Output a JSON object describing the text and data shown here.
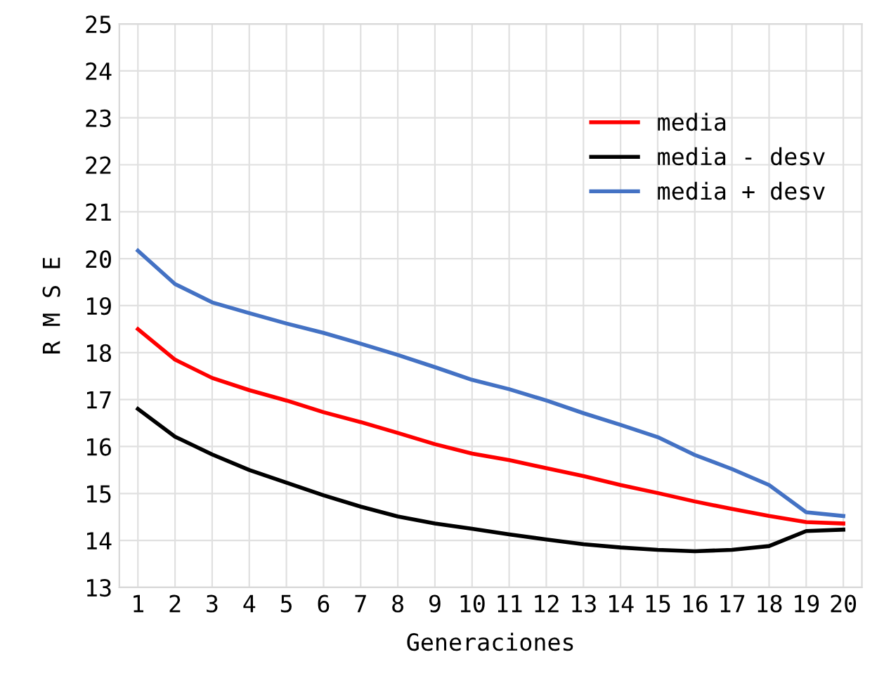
{
  "chart_data": {
    "type": "line",
    "xlabel": "Generaciones",
    "ylabel": "R M S E",
    "categories": [
      "1",
      "2",
      "3",
      "4",
      "5",
      "6",
      "7",
      "8",
      "9",
      "10",
      "11",
      "12",
      "13",
      "14",
      "15",
      "16",
      "17",
      "18",
      "19",
      "20"
    ],
    "series": [
      {
        "name": "media",
        "color": "#ff0000",
        "values": [
          18.5,
          17.85,
          17.46,
          17.2,
          16.98,
          16.73,
          16.52,
          16.29,
          16.05,
          15.85,
          15.71,
          15.54,
          15.37,
          15.18,
          15.01,
          14.83,
          14.67,
          14.52,
          14.39,
          14.36
        ]
      },
      {
        "name": "media - desv",
        "color": "#000000",
        "values": [
          16.8,
          16.21,
          15.83,
          15.5,
          15.23,
          14.96,
          14.72,
          14.51,
          14.36,
          14.25,
          14.13,
          14.02,
          13.92,
          13.85,
          13.8,
          13.77,
          13.8,
          13.88,
          14.2,
          14.23
        ]
      },
      {
        "name": "media + desv",
        "color": "#4472c4",
        "values": [
          20.17,
          19.46,
          19.07,
          18.84,
          18.62,
          18.42,
          18.19,
          17.95,
          17.69,
          17.42,
          17.22,
          16.98,
          16.71,
          16.46,
          16.2,
          15.82,
          15.52,
          15.18,
          14.6,
          14.52
        ]
      }
    ],
    "ylim": [
      13,
      25
    ],
    "yticks": [
      13,
      14,
      15,
      16,
      17,
      18,
      19,
      20,
      21,
      22,
      23,
      24,
      25
    ],
    "grid": true,
    "legend": "top right",
    "marker": "none",
    "line_style": "solid"
  }
}
